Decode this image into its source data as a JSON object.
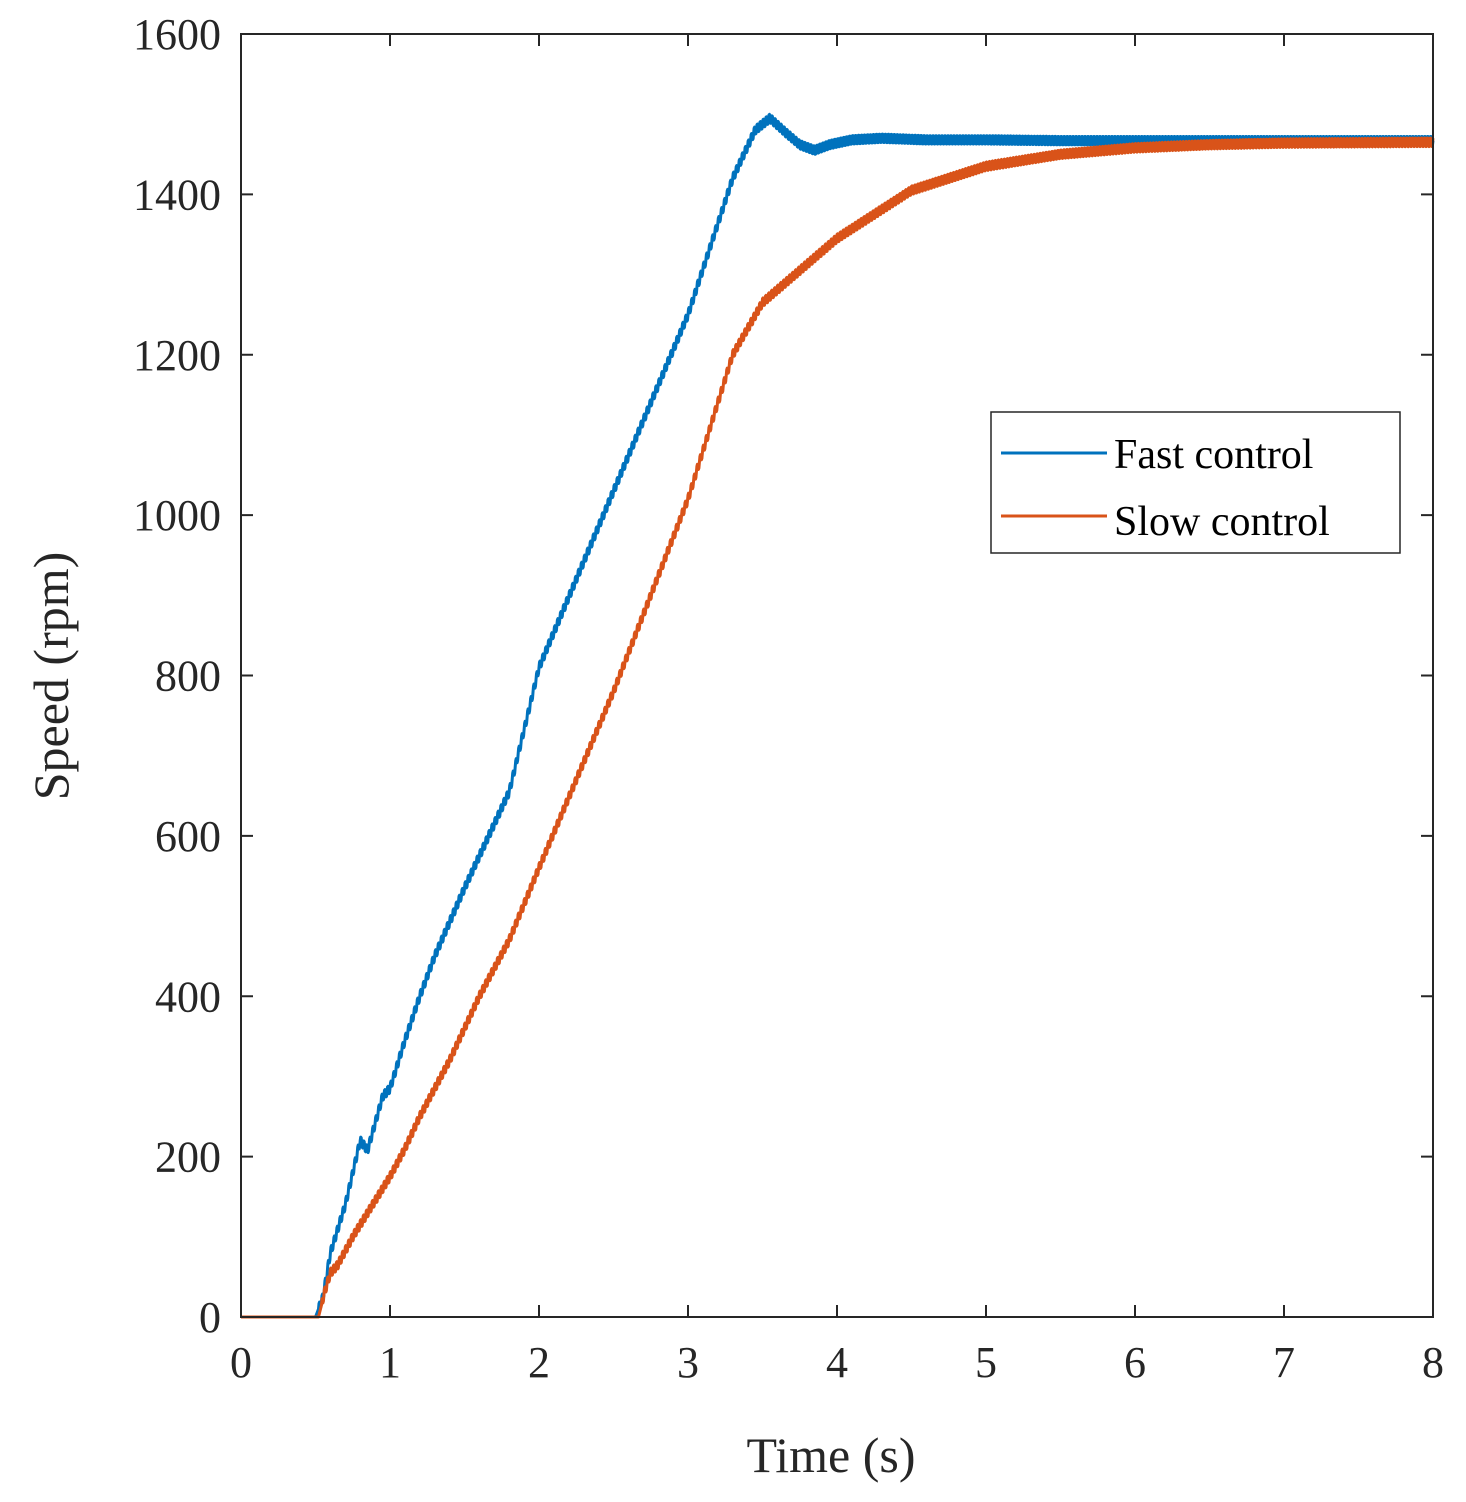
{
  "chart_data": {
    "type": "line",
    "title": "",
    "xlabel": "Time (s)",
    "ylabel": "Speed (rpm)",
    "xlim": [
      0,
      8
    ],
    "ylim": [
      0,
      1600
    ],
    "xticks": [
      0,
      1,
      2,
      3,
      4,
      5,
      6,
      7,
      8
    ],
    "yticks": [
      0,
      200,
      400,
      600,
      800,
      1000,
      1200,
      1400,
      1600
    ],
    "grid": false,
    "legend_position": "upper-right",
    "series": [
      {
        "name": "Fast control",
        "color": "#0072BD",
        "x": [
          0,
          0.5,
          0.55,
          0.6,
          0.7,
          0.8,
          0.85,
          0.95,
          1.0,
          1.1,
          1.2,
          1.3,
          1.5,
          1.8,
          2.0,
          2.5,
          3.0,
          3.3,
          3.45,
          3.55,
          3.65,
          3.75,
          3.85,
          3.95,
          4.1,
          4.3,
          4.6,
          5.0,
          5.5,
          6.0,
          7.0,
          8.0
        ],
        "y": [
          0,
          0,
          25,
          80,
          140,
          220,
          208,
          275,
          285,
          345,
          400,
          450,
          535,
          655,
          810,
          1030,
          1250,
          1420,
          1480,
          1495,
          1478,
          1462,
          1455,
          1462,
          1468,
          1470,
          1468,
          1468,
          1467,
          1467,
          1467,
          1467
        ],
        "ripple": 6
      },
      {
        "name": "Slow control",
        "color": "#D95319",
        "x": [
          0,
          0.52,
          0.56,
          0.6,
          0.65,
          0.75,
          0.85,
          0.95,
          1.0,
          1.1,
          1.2,
          1.4,
          1.6,
          1.8,
          2.0,
          2.5,
          3.0,
          3.3,
          3.5,
          3.75,
          4.0,
          4.5,
          5.0,
          5.5,
          6.0,
          6.5,
          7.0,
          8.0
        ],
        "y": [
          0,
          0,
          30,
          55,
          65,
          100,
          130,
          160,
          175,
          210,
          250,
          320,
          400,
          470,
          560,
          780,
          1020,
          1200,
          1265,
          1305,
          1345,
          1405,
          1435,
          1450,
          1458,
          1462,
          1464,
          1465
        ],
        "ripple": 6
      }
    ]
  }
}
